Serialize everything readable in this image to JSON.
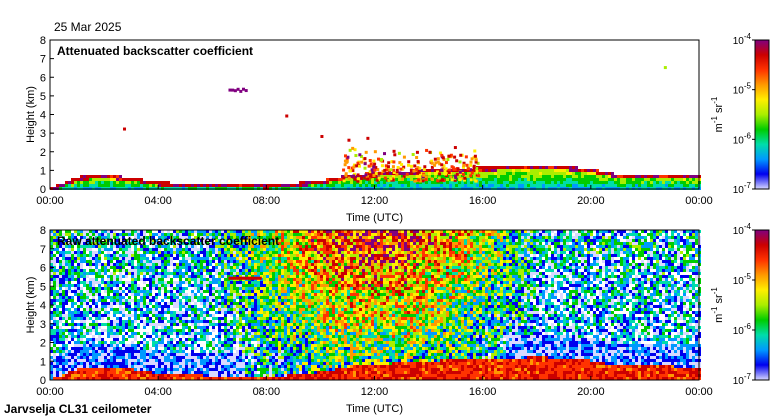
{
  "date": "25 Mar 2025",
  "footer": "Jarvselja CL31 ceilometer",
  "colors": {
    "scale": [
      "#ffffff",
      "#d8d8ff",
      "#0000ee",
      "#0099ff",
      "#00ddaa",
      "#00cc00",
      "#aaee00",
      "#ffee00",
      "#ff9900",
      "#ff3300",
      "#cc0000",
      "#800080"
    ],
    "frame": "#000000"
  },
  "chart_data": [
    {
      "type": "heatmap",
      "title": "Attenuated backscatter coefficient",
      "xlabel": "Time (UTC)",
      "ylabel": "Height (km)",
      "xticks": [
        "00:00",
        "04:00",
        "08:00",
        "12:00",
        "16:00",
        "20:00",
        "00:00"
      ],
      "yticks": [
        "0",
        "1",
        "2",
        "3",
        "4",
        "5",
        "6",
        "7",
        "8"
      ],
      "xlim": [
        0,
        24
      ],
      "ylim": [
        0,
        8
      ],
      "colorbar": {
        "label": "m-1 sr-1",
        "ticks": [
          "10-7",
          "10-6",
          "10-5",
          "10-4"
        ],
        "range_log10": [
          -7,
          -4
        ]
      },
      "features": [
        {
          "name": "boundary-layer",
          "time_range": [
            0,
            24
          ],
          "height_km": [
            0.1,
            0.7,
            0.8,
            0.65,
            0.4,
            0.35,
            0.3,
            0.3,
            0.25,
            0.35,
            0.5,
            0.8,
            0.9,
            1.0,
            1.1,
            1.15,
            1.2,
            1.25,
            1.3,
            1.25,
            1.1,
            0.8,
            0.85,
            0.8,
            0.75
          ]
        },
        {
          "name": "elevated-cloud",
          "time": [
            6.6,
            7.2
          ],
          "height_km": 5.4
        },
        {
          "name": "convective-cloud",
          "time": [
            10.8,
            15.8
          ],
          "height_km": [
            0.5,
            2.5
          ]
        }
      ]
    },
    {
      "type": "heatmap",
      "title": "Raw attenuated backscatter coefficient",
      "xlabel": "Time (UTC)",
      "ylabel": "Height (km)",
      "xticks": [
        "00:00",
        "04:00",
        "08:00",
        "12:00",
        "16:00",
        "20:00",
        "00:00"
      ],
      "yticks": [
        "0",
        "1",
        "2",
        "3",
        "4",
        "5",
        "6",
        "7",
        "8"
      ],
      "xlim": [
        0,
        24
      ],
      "ylim": [
        0,
        8
      ],
      "colorbar": {
        "label": "m-1 sr-1",
        "ticks": [
          "10-7",
          "10-6",
          "10-5",
          "10-4"
        ],
        "range_log10": [
          -7,
          -4
        ]
      },
      "features": [
        {
          "name": "boundary-layer",
          "time_range": [
            0,
            24
          ],
          "height_km": [
            0.1,
            0.7,
            0.8,
            0.65,
            0.4,
            0.35,
            0.3,
            0.3,
            0.25,
            0.35,
            0.5,
            0.8,
            0.9,
            1.0,
            1.1,
            1.15,
            1.2,
            1.25,
            1.3,
            1.25,
            1.1,
            0.8,
            0.85,
            0.8,
            0.75
          ]
        },
        {
          "name": "elevated-cloud",
          "time": [
            6.6,
            7.8
          ],
          "height_km": 5.4
        },
        {
          "name": "daytime-noise",
          "time": [
            7,
            17
          ],
          "height_km": [
            2,
            8
          ]
        }
      ]
    }
  ]
}
